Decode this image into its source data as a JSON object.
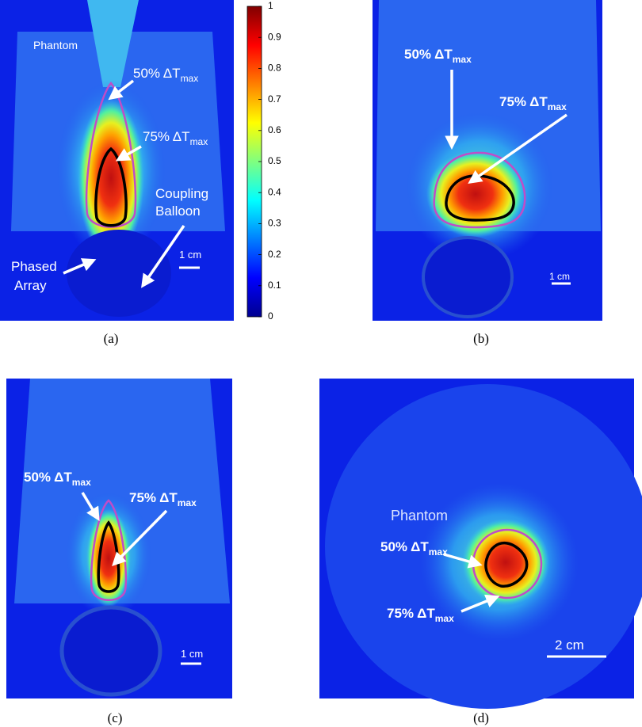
{
  "panel_a": {
    "caption": "(a)",
    "phantom": "Phantom",
    "contour_50": {
      "text": "50% ΔT",
      "sub": "max"
    },
    "contour_75": {
      "text": "75% ΔT",
      "sub": "max"
    },
    "balloon": [
      "Coupling",
      "Balloon"
    ],
    "array": [
      "Phased",
      "Array"
    ],
    "scale": "1 cm"
  },
  "colorbar": {
    "range": [
      0,
      1
    ],
    "ticks": [
      0,
      0.1,
      0.2,
      0.3,
      0.4,
      0.5,
      0.6,
      0.7,
      0.8,
      0.9,
      1
    ]
  },
  "panel_b": {
    "caption": "(b)",
    "contour_50": {
      "text": "50% ΔT",
      "sub": "max"
    },
    "contour_75": {
      "text": "75% ΔT",
      "sub": "max"
    },
    "scale": "1 cm"
  },
  "panel_c": {
    "caption": "(c)",
    "contour_50": {
      "text": "50% ΔT",
      "sub": "max"
    },
    "contour_75": {
      "text": "75% ΔT",
      "sub": "max"
    },
    "scale": "1 cm"
  },
  "panel_d": {
    "caption": "(d)",
    "phantom": "Phantom",
    "contour_50": {
      "text": "50% ΔT",
      "sub": "max"
    },
    "contour_75": {
      "text": "75% ΔT",
      "sub": "max"
    },
    "scale": "2 cm"
  }
}
